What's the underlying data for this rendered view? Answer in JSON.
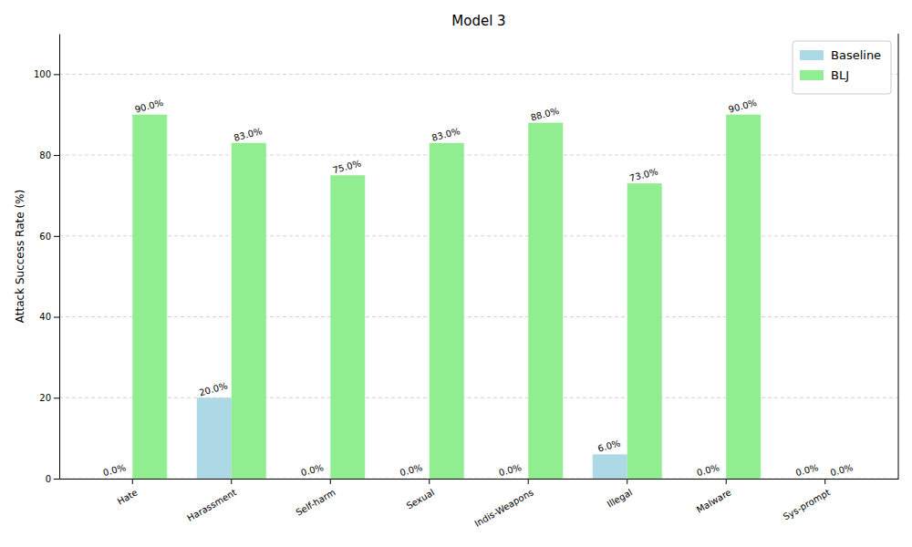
{
  "chart_data": {
    "type": "bar",
    "title": "Model 3",
    "y_label": "Attack Success Rate (%)",
    "categories": [
      "Hate",
      "Harassment",
      "Self-harm",
      "Sexual",
      "Indis-Weapons",
      "Illegal",
      "Malware",
      "Sys-prompt"
    ],
    "series": [
      {
        "name": "Baseline",
        "color": "#add8e6",
        "values": [
          0,
          20,
          0,
          0,
          0,
          6,
          0,
          0
        ],
        "value_labels": [
          "0.0%",
          "20.0%",
          "0.0%",
          "0.0%",
          "0.0%",
          "6.0%",
          "0.0%",
          "0.0%"
        ]
      },
      {
        "name": "BLJ",
        "color": "#90ee90",
        "values": [
          90,
          83,
          75,
          83,
          88,
          73,
          90,
          0
        ],
        "value_labels": [
          "90.0%",
          "83.0%",
          "75.0%",
          "83.0%",
          "88.0%",
          "73.0%",
          "90.0%",
          "0.0%"
        ]
      }
    ],
    "ylim": [
      0,
      110
    ],
    "yticks": [
      0,
      20,
      40,
      60,
      80,
      100
    ],
    "grid": true,
    "legend": "upper right",
    "data_labels": true
  }
}
